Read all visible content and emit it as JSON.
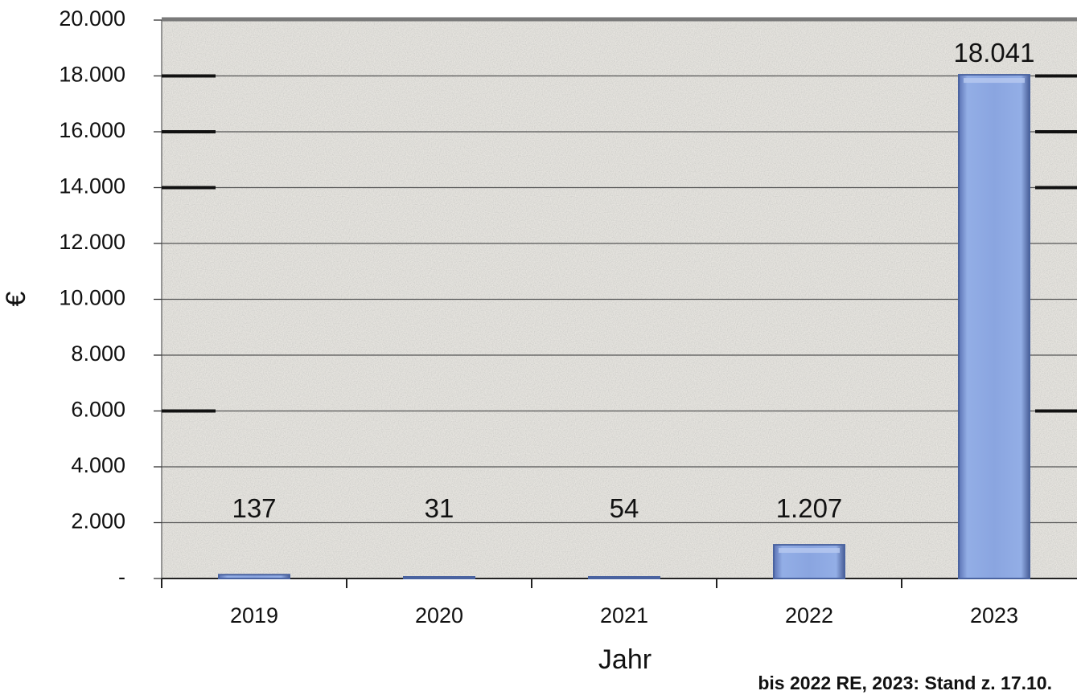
{
  "chart_data": {
    "type": "bar",
    "categories": [
      "2019",
      "2020",
      "2021",
      "2022",
      "2023"
    ],
    "values": [
      137,
      31,
      54,
      1207,
      18041
    ],
    "data_labels": [
      "137",
      "31",
      "54",
      "1.207",
      "18.041"
    ],
    "ylabel": "€",
    "xlabel": "Jahr",
    "ylim": [
      0,
      20000
    ],
    "y_ticks": [
      0,
      2000,
      4000,
      6000,
      8000,
      10000,
      12000,
      14000,
      16000,
      18000,
      20000
    ],
    "y_tick_labels": [
      "-",
      "2.000",
      "4.000",
      "6.000",
      "8.000",
      "10.000",
      "12.000",
      "14.000",
      "16.000",
      "18.000",
      "20.000"
    ],
    "grid": true,
    "legend": "none",
    "note": "bis 2022 RE, 2023: Stand z. 17.10.",
    "colors": {
      "bar": "#7f9bd6",
      "bar_edge": "#4a63a0",
      "plot_background": "#e4e2dd",
      "grid": "#555555"
    }
  }
}
